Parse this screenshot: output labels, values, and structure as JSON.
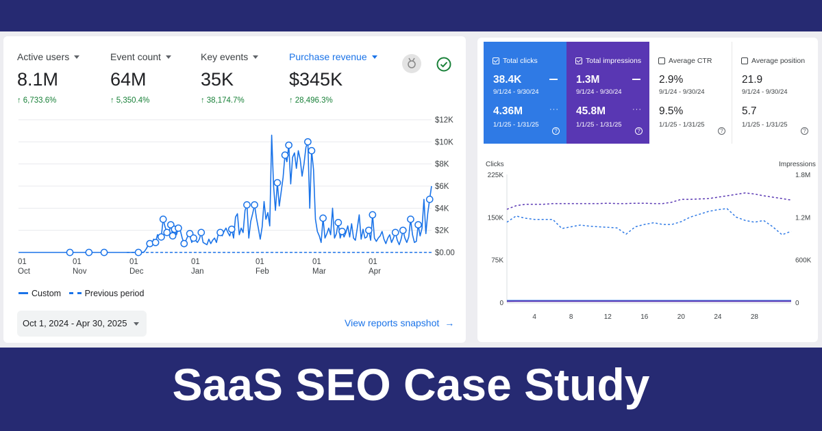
{
  "ga": {
    "metrics": [
      {
        "label": "Active users",
        "value": "8.1M",
        "change": "6,733.6%"
      },
      {
        "label": "Event count",
        "value": "64M",
        "change": "5,350.4%"
      },
      {
        "label": "Key events",
        "value": "35K",
        "change": "38,174.7%"
      },
      {
        "label": "Purchase revenue",
        "value": "$345K",
        "change": "28,496.3%"
      }
    ],
    "icons": {
      "badge": "badge-icon",
      "check": "check-circle-icon"
    },
    "legend": {
      "current": "Custom",
      "previous": "Previous period"
    },
    "date_range": "Oct 1, 2024 - Apr 30, 2025",
    "snapshot_link": "View reports snapshot",
    "colors": {
      "line": "#1a73e8",
      "positive": "#188038"
    }
  },
  "gsc": {
    "cards": [
      {
        "label": "Total clicks",
        "checked": true,
        "value1": "38.4K",
        "date1": "9/1/24 - 9/30/24",
        "value2": "4.36M",
        "date2": "1/1/25 - 1/31/25",
        "color": "#2f7ae5"
      },
      {
        "label": "Total impressions",
        "checked": true,
        "value1": "1.3M",
        "date1": "9/1/24 - 9/30/24",
        "value2": "45.8M",
        "date2": "1/1/25 - 1/31/25",
        "color": "#5937b3"
      },
      {
        "label": "Average CTR",
        "checked": false,
        "value1": "2.9%",
        "date1": "9/1/24 - 9/30/24",
        "value2": "9.5%",
        "date2": "1/1/25 - 1/31/25"
      },
      {
        "label": "Average position",
        "checked": false,
        "value1": "21.9",
        "date1": "9/1/24 - 9/30/24",
        "value2": "5.7",
        "date2": "1/1/25 - 1/31/25"
      }
    ]
  },
  "footer": {
    "title": "SaaS SEO Case Study"
  },
  "chart_data": [
    {
      "type": "line",
      "title": "",
      "x_ticks": [
        {
          "top": "01",
          "bottom": "Oct"
        },
        {
          "top": "01",
          "bottom": "Nov"
        },
        {
          "top": "01",
          "bottom": "Dec"
        },
        {
          "top": "01",
          "bottom": "Jan"
        },
        {
          "top": "01",
          "bottom": "Feb"
        },
        {
          "top": "01",
          "bottom": "Mar"
        },
        {
          "top": "01",
          "bottom": "Apr"
        }
      ],
      "y_ticks": [
        "$0.00",
        "$2K",
        "$4K",
        "$6K",
        "$8K",
        "$10K",
        "$12K"
      ],
      "ylim": [
        0,
        12000
      ],
      "y_axis_side": "right",
      "grid": true,
      "legend_position": "bottom-left",
      "series": [
        {
          "name": "Custom",
          "style": "solid",
          "values": [
            0,
            0,
            0,
            0,
            0,
            0,
            0,
            0,
            0,
            0,
            0,
            0,
            0,
            0,
            0,
            0,
            0,
            0,
            0,
            0,
            0,
            0,
            0,
            0,
            0,
            0,
            0,
            0,
            0,
            0,
            0,
            0,
            0,
            0,
            0,
            0,
            0,
            0,
            0,
            0,
            0,
            0,
            0,
            0,
            0,
            0,
            0,
            0,
            0,
            0,
            0,
            0,
            0,
            0,
            0,
            0,
            0,
            0,
            0,
            0,
            0,
            0,
            0,
            0,
            0,
            0,
            50,
            300,
            600,
            800,
            700,
            1200,
            900,
            1600,
            1500,
            1400,
            3000,
            2300,
            1800,
            1800,
            2500,
            1500,
            2100,
            1600,
            2200,
            2000,
            1300,
            800,
            1100,
            1500,
            1700,
            900,
            1300,
            1100,
            900,
            1200,
            1800,
            900,
            800,
            700,
            1200,
            800,
            1100,
            1300,
            900,
            1700,
            1800,
            1500,
            1900,
            2200,
            1800,
            1500,
            2100,
            1300,
            3200,
            3500,
            1600,
            2200,
            1800,
            3800,
            4300,
            1300,
            2800,
            3500,
            4300,
            3100,
            2200,
            1200,
            2300,
            4600,
            3000,
            3600,
            2400,
            10600,
            6000,
            3800,
            6300,
            4200,
            5500,
            6800,
            8800,
            8200,
            9700,
            6200,
            8600,
            9000,
            7600,
            9200,
            8400,
            6900,
            8000,
            9500,
            10000,
            4000,
            9200,
            7500,
            3000,
            1900,
            1500,
            900,
            3100,
            1300,
            1700,
            2200,
            1600,
            4000,
            1300,
            1700,
            2700,
            1300,
            1900,
            1400,
            1800,
            2400,
            1400,
            2600,
            1300,
            1100,
            2200,
            3400,
            1200,
            2100,
            1300,
            1400,
            2000,
            1100,
            3400,
            1300,
            1000,
            1300,
            1500,
            1900,
            1200,
            800,
            1300,
            1600,
            900,
            1300,
            1800,
            1100,
            700,
            1200,
            2000,
            1300,
            900,
            1400,
            3000,
            1600,
            900,
            1000,
            2500,
            1500,
            2200,
            4800,
            1700,
            3500,
            4800,
            6000
          ]
        },
        {
          "name": "Previous period",
          "style": "dashed",
          "values": [
            0,
            0
          ]
        }
      ]
    },
    {
      "type": "line",
      "title": "",
      "x_ticks": [
        "4",
        "8",
        "12",
        "16",
        "20",
        "24",
        "28"
      ],
      "y_left_label": "Clicks",
      "y_left_ticks": [
        "0",
        "75K",
        "150K",
        "225K"
      ],
      "ylim_left": [
        0,
        225000
      ],
      "y_right_label": "Impressions",
      "y_right_ticks": [
        "0",
        "600K",
        "1.2M",
        "1.8M"
      ],
      "ylim_right": [
        0,
        1800000
      ],
      "grid": false,
      "series": [
        {
          "name": "Total clicks",
          "axis": "left",
          "style": "dashed",
          "color": "#2f7ae5",
          "values": [
            141000,
            152000,
            148000,
            146000,
            146000,
            146000,
            130000,
            133000,
            136000,
            134000,
            133000,
            132000,
            131000,
            120000,
            133000,
            137000,
            140000,
            137000,
            137000,
            142000,
            150000,
            155000,
            160000,
            163000,
            165000,
            150000,
            144000,
            141000,
            144000,
            133000,
            119000,
            125000
          ]
        },
        {
          "name": "Total impressions",
          "axis": "right",
          "style": "dashed",
          "color": "#5937b3",
          "values": [
            1310000,
            1360000,
            1380000,
            1380000,
            1380000,
            1390000,
            1390000,
            1390000,
            1390000,
            1390000,
            1390000,
            1395000,
            1390000,
            1390000,
            1395000,
            1395000,
            1390000,
            1390000,
            1410000,
            1450000,
            1450000,
            1455000,
            1460000,
            1480000,
            1500000,
            1520000,
            1540000,
            1525000,
            1500000,
            1480000,
            1460000,
            1440000
          ]
        },
        {
          "name": "Previous clicks",
          "axis": "left",
          "style": "solid",
          "color": "#2f7ae5",
          "values": [
            3000,
            3000,
            3000,
            3000,
            3000,
            3000,
            3000,
            3000,
            3000,
            3000,
            3000,
            3000,
            3000,
            3000,
            3000,
            3000,
            3000,
            3000,
            3000,
            3000,
            3000,
            3000,
            3000,
            3000,
            3000,
            3000,
            3000,
            3000,
            3000,
            3000,
            3000,
            3000
          ]
        },
        {
          "name": "Previous impressions",
          "axis": "right",
          "style": "solid",
          "color": "#5937b3",
          "values": [
            15000,
            16000,
            16000,
            16000,
            17000,
            17000,
            17000,
            17000,
            17000,
            17000,
            17000,
            17000,
            17000,
            17000,
            17000,
            17000,
            17000,
            17000,
            17000,
            17000,
            17000,
            17000,
            17000,
            17000,
            17000,
            17000,
            17000,
            17000,
            17000,
            17000,
            17000,
            17000
          ]
        }
      ]
    }
  ]
}
